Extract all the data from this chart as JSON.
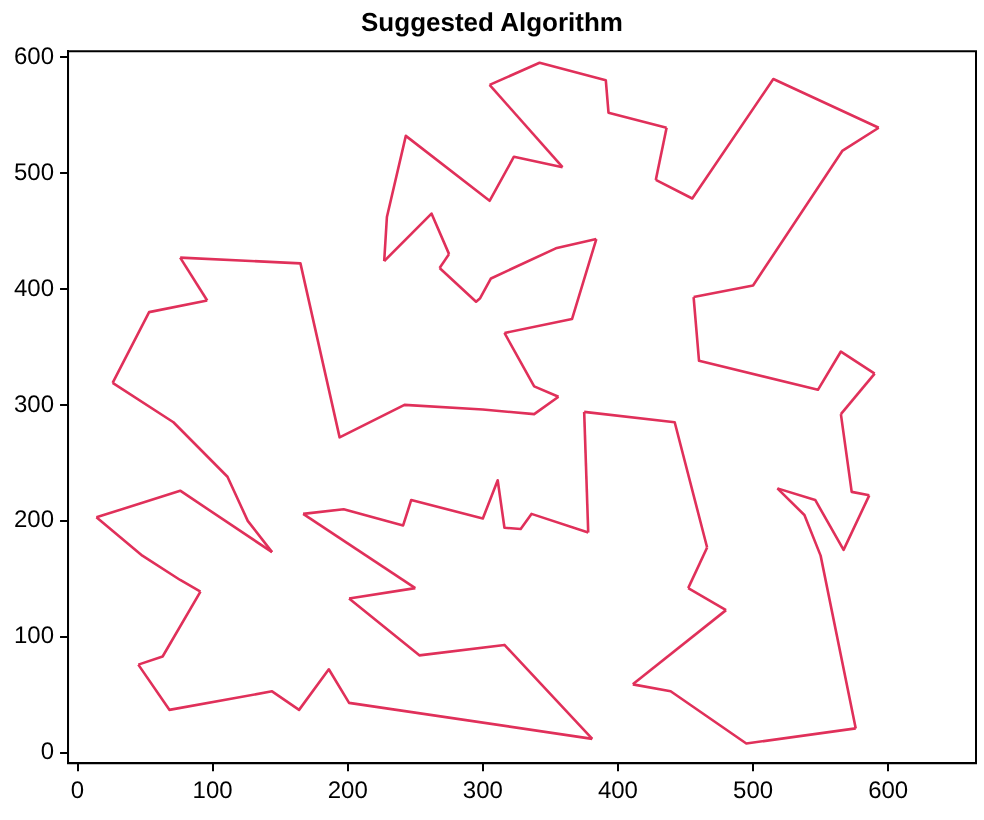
{
  "chart_data": {
    "type": "line",
    "title": "Suggested Algorithm",
    "xlim": [
      -7,
      665
    ],
    "ylim": [
      -9,
      605
    ],
    "xticks": [
      0,
      100,
      200,
      300,
      400,
      500,
      600
    ],
    "yticks": [
      0,
      100,
      200,
      300,
      400,
      500,
      600
    ],
    "grid": false,
    "legend": false,
    "marker": "none",
    "line_style": "solid",
    "series": [
      {
        "color": "#e0305a",
        "x": [
          14,
          76,
          144
        ],
        "values": [
          203,
          226,
          173
        ]
      },
      {
        "color": "#e0305a",
        "x": [
          26,
          71,
          111,
          126,
          144
        ],
        "values": [
          319,
          285,
          238,
          200,
          173
        ]
      },
      {
        "color": "#e0305a",
        "x": [
          26,
          53,
          96
        ],
        "values": [
          319,
          380,
          390
        ]
      },
      {
        "color": "#e0305a",
        "x": [
          76,
          96
        ],
        "values": [
          427,
          390
        ]
      },
      {
        "color": "#e0305a",
        "x": [
          76,
          165,
          194,
          242,
          300,
          338,
          356
        ],
        "values": [
          427,
          422,
          272,
          300,
          296,
          292,
          307
        ]
      },
      {
        "color": "#e0305a",
        "x": [
          316,
          338,
          356
        ],
        "values": [
          362,
          316,
          307
        ]
      },
      {
        "color": "#e0305a",
        "x": [
          316,
          366,
          384
        ],
        "values": [
          362,
          374,
          443
        ]
      },
      {
        "color": "#e0305a",
        "x": [
          268,
          295,
          298,
          306,
          354,
          384
        ],
        "values": [
          418,
          389,
          392,
          409,
          435,
          443
        ]
      },
      {
        "color": "#e0305a",
        "x": [
          268,
          275
        ],
        "values": [
          418,
          430
        ]
      },
      {
        "color": "#e0305a",
        "x": [
          227,
          262,
          275
        ],
        "values": [
          424,
          465,
          430
        ]
      },
      {
        "color": "#e0305a",
        "x": [
          227,
          229,
          243,
          305,
          323,
          359
        ],
        "values": [
          424,
          462,
          532,
          476,
          514,
          505
        ]
      },
      {
        "color": "#e0305a",
        "x": [
          305,
          359
        ],
        "values": [
          576,
          505
        ]
      },
      {
        "color": "#e0305a",
        "x": [
          305,
          342,
          391,
          393,
          436
        ],
        "values": [
          576,
          595,
          580,
          552,
          539
        ]
      },
      {
        "color": "#e0305a",
        "x": [
          428,
          436
        ],
        "values": [
          494,
          539
        ]
      },
      {
        "color": "#e0305a",
        "x": [
          428,
          455,
          515,
          593
        ],
        "values": [
          494,
          478,
          581,
          539
        ]
      },
      {
        "color": "#e0305a",
        "x": [
          456,
          500,
          566,
          593
        ],
        "values": [
          393,
          403,
          519,
          539
        ]
      },
      {
        "color": "#e0305a",
        "x": [
          456,
          460,
          548,
          565,
          590
        ],
        "values": [
          393,
          338,
          313,
          346,
          327
        ]
      },
      {
        "color": "#e0305a",
        "x": [
          565,
          590
        ],
        "values": [
          292,
          327
        ]
      },
      {
        "color": "#e0305a",
        "x": [
          565,
          573,
          586
        ],
        "values": [
          292,
          225,
          222
        ]
      },
      {
        "color": "#e0305a",
        "x": [
          518,
          546,
          567,
          586
        ],
        "values": [
          228,
          218,
          175,
          222
        ]
      },
      {
        "color": "#e0305a",
        "x": [
          518,
          538,
          550,
          576
        ],
        "values": [
          228,
          205,
          170,
          21
        ]
      },
      {
        "color": "#e0305a",
        "x": [
          411,
          439,
          495,
          576
        ],
        "values": [
          59,
          53,
          8,
          21
        ]
      },
      {
        "color": "#e0305a",
        "x": [
          411,
          480
        ],
        "values": [
          59,
          123
        ]
      },
      {
        "color": "#e0305a",
        "x": [
          452,
          480
        ],
        "values": [
          142,
          123
        ]
      },
      {
        "color": "#e0305a",
        "x": [
          452,
          466
        ],
        "values": [
          142,
          177
        ]
      },
      {
        "color": "#e0305a",
        "x": [
          375,
          442,
          466
        ],
        "values": [
          294,
          285,
          177
        ]
      },
      {
        "color": "#e0305a",
        "x": [
          375,
          378
        ],
        "values": [
          294,
          190
        ]
      },
      {
        "color": "#e0305a",
        "x": [
          167,
          197,
          241,
          247,
          300,
          311,
          316,
          328,
          336,
          378
        ],
        "values": [
          206,
          210,
          196,
          218,
          202,
          235,
          194,
          193,
          206,
          190
        ]
      },
      {
        "color": "#e0305a",
        "x": [
          167,
          250
        ],
        "values": [
          206,
          142
        ]
      },
      {
        "color": "#e0305a",
        "x": [
          201,
          250
        ],
        "values": [
          133,
          142
        ]
      },
      {
        "color": "#e0305a",
        "x": [
          201,
          253,
          316,
          381
        ],
        "values": [
          133,
          84,
          93,
          12
        ]
      },
      {
        "color": "#e0305a",
        "x": [
          45,
          68,
          144,
          164,
          186,
          201,
          381
        ],
        "values": [
          76,
          37,
          53,
          37,
          72,
          43,
          12
        ]
      },
      {
        "color": "#e0305a",
        "x": [
          45,
          63,
          91
        ],
        "values": [
          76,
          83,
          139
        ]
      },
      {
        "color": "#e0305a",
        "x": [
          14,
          48,
          76,
          91
        ],
        "values": [
          203,
          170,
          149,
          139
        ]
      }
    ]
  }
}
